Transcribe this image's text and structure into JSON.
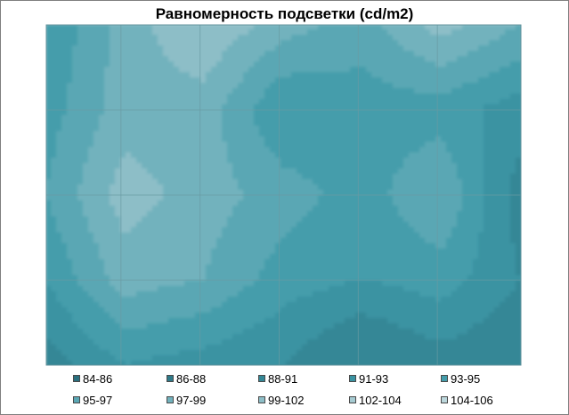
{
  "chart_data": {
    "type": "heatmap",
    "subtype": "contour",
    "title": "Равномерность подсветки (cd/m2)",
    "xlabel": "",
    "ylabel": "",
    "grid": true,
    "legend_placement": "bottom",
    "levels": [
      "84-86",
      "86-88",
      "88-91",
      "91-93",
      "93-95",
      "95-97",
      "97-99",
      "99-102",
      "102-104",
      "104-106"
    ],
    "level_colors": [
      "#2a6f7e",
      "#2f7a89",
      "#348796",
      "#3a93a2",
      "#449dab",
      "#5aa7b4",
      "#72b2bd",
      "#8dbec7",
      "#a6cbd2",
      "#bcd7dc"
    ],
    "rows": 5,
    "cols": 7,
    "values": [
      [
        93,
        98,
        101,
        98,
        96,
        100,
        97
      ],
      [
        94,
        98,
        98,
        93,
        94,
        94,
        92
      ],
      [
        95,
        100,
        98,
        96,
        94,
        97,
        90
      ],
      [
        93,
        98,
        97,
        94,
        93,
        94,
        91
      ],
      [
        90,
        93,
        92,
        91,
        88,
        90,
        89
      ]
    ]
  }
}
